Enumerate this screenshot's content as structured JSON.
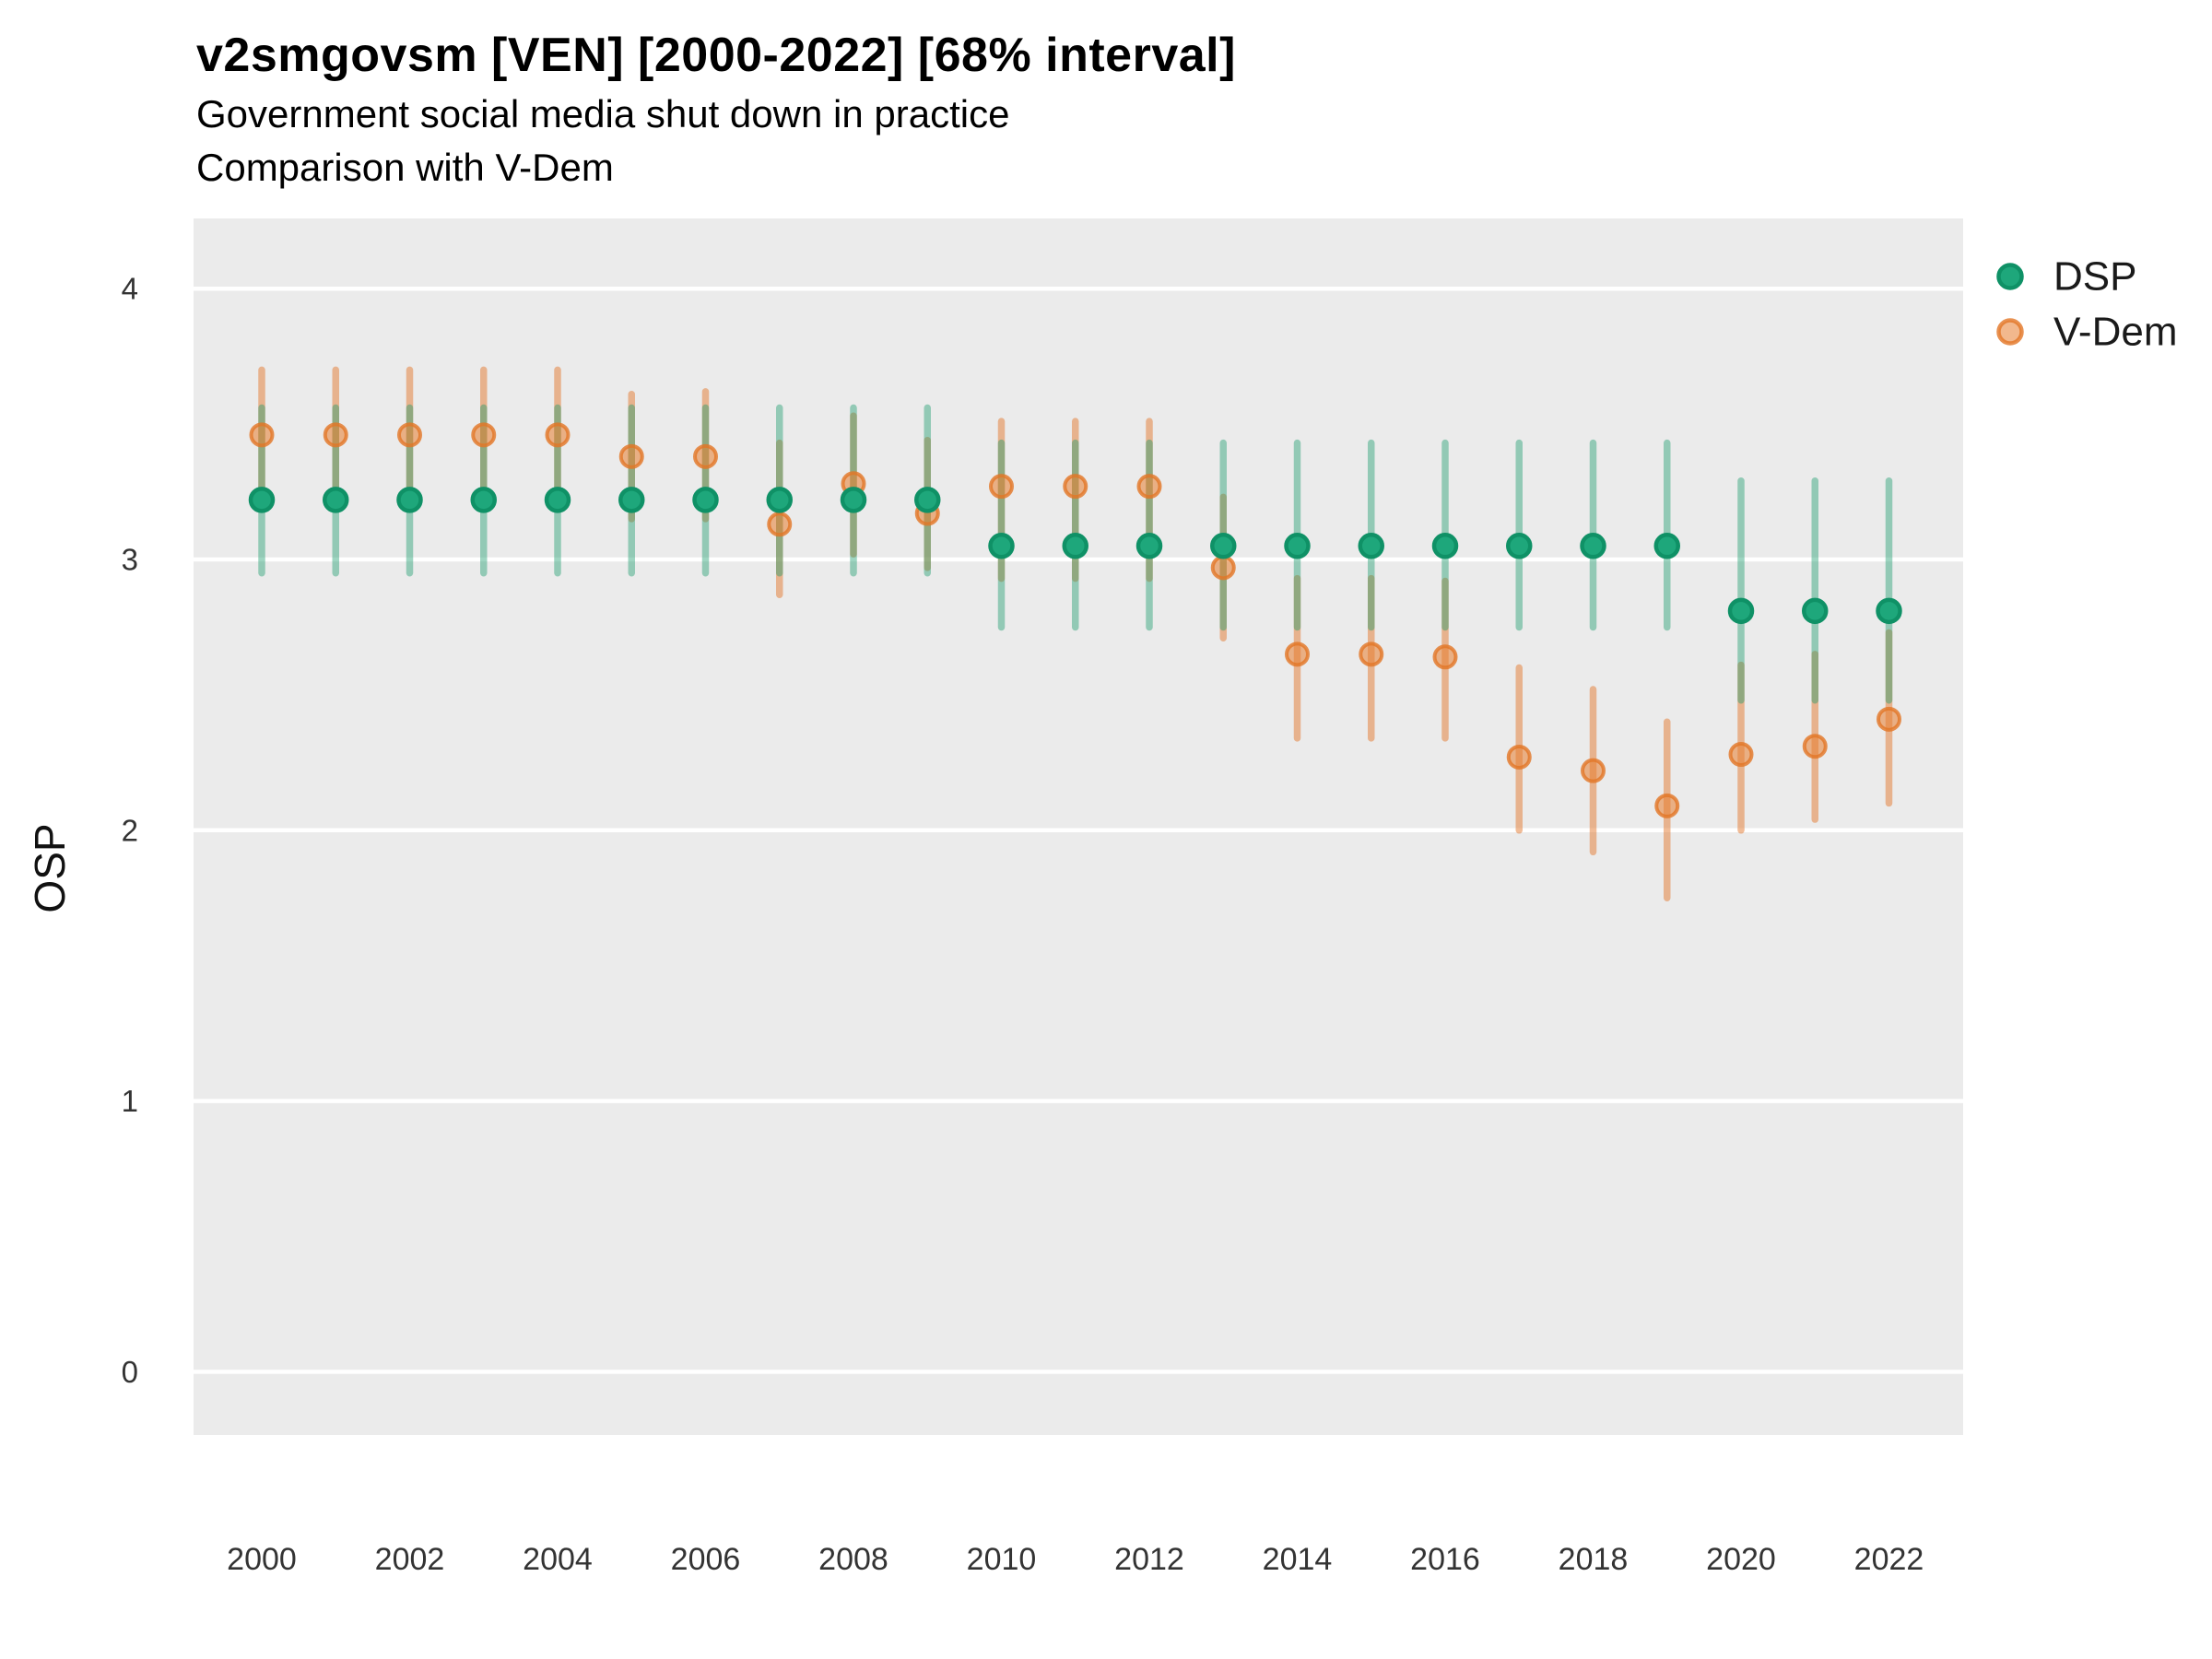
{
  "header": {
    "title": "v2smgovsm [VEN] [2000-2022] [68% interval]",
    "subtitle": "Government social media shut down in practice",
    "subtitle2": "Comparison with V-Dem"
  },
  "chart_data": {
    "type": "pointrange (dot with 68% credible interval bars)",
    "title": "v2smgovsm [VEN] [2000-2022] [68% interval]",
    "subtitle": "Government social media shut down in practice",
    "comparison_note": "Comparison with V-Dem",
    "xlabel": "",
    "ylabel": "OSP",
    "x": [
      2000,
      2001,
      2002,
      2003,
      2004,
      2005,
      2006,
      2007,
      2008,
      2009,
      2010,
      2011,
      2012,
      2013,
      2014,
      2015,
      2016,
      2017,
      2018,
      2019,
      2020,
      2021,
      2022
    ],
    "x_tick_labels": [
      "2000",
      "2002",
      "2004",
      "2006",
      "2008",
      "2010",
      "2012",
      "2014",
      "2016",
      "2018",
      "2020",
      "2022"
    ],
    "x_tick_years": [
      2000,
      2002,
      2004,
      2006,
      2008,
      2010,
      2012,
      2014,
      2016,
      2018,
      2020,
      2022
    ],
    "y_ticks": [
      0,
      1,
      2,
      3,
      4
    ],
    "ylim": [
      -0.27,
      4.27
    ],
    "grid": "major horizontal white lines on gray panel",
    "legend_position": "right",
    "series": [
      {
        "name": "V-Dem",
        "est": [
          3.46,
          3.46,
          3.46,
          3.46,
          3.46,
          3.38,
          3.38,
          3.13,
          3.28,
          3.17,
          3.27,
          3.27,
          3.27,
          2.97,
          2.65,
          2.65,
          2.64,
          2.27,
          2.22,
          2.09,
          2.28,
          2.31,
          2.41
        ],
        "lo": [
          3.22,
          3.22,
          3.22,
          3.22,
          3.22,
          3.15,
          3.15,
          2.87,
          3.02,
          2.97,
          2.93,
          2.93,
          2.93,
          2.71,
          2.34,
          2.34,
          2.34,
          2.0,
          1.92,
          1.75,
          2.0,
          2.04,
          2.1
        ],
        "hi": [
          3.7,
          3.7,
          3.7,
          3.7,
          3.7,
          3.61,
          3.62,
          3.43,
          3.53,
          3.44,
          3.51,
          3.51,
          3.51,
          3.23,
          2.93,
          2.93,
          2.92,
          2.6,
          2.52,
          2.4,
          2.61,
          2.65,
          2.73
        ],
        "point_fill": "rgba(231,126,48,0.55)",
        "point_stroke": "rgba(226,117,38,0.8)",
        "line_color": "rgba(227,121,47,0.5)"
      },
      {
        "name": "DSP",
        "est": [
          3.22,
          3.22,
          3.22,
          3.22,
          3.22,
          3.22,
          3.22,
          3.22,
          3.22,
          3.22,
          3.05,
          3.05,
          3.05,
          3.05,
          3.05,
          3.05,
          3.05,
          3.05,
          3.05,
          3.05,
          2.81,
          2.81,
          2.81
        ],
        "lo": [
          2.95,
          2.95,
          2.95,
          2.95,
          2.95,
          2.95,
          2.95,
          2.95,
          2.95,
          2.95,
          2.75,
          2.75,
          2.75,
          2.75,
          2.75,
          2.75,
          2.75,
          2.75,
          2.75,
          2.75,
          2.48,
          2.48,
          2.48
        ],
        "hi": [
          3.56,
          3.56,
          3.56,
          3.56,
          3.56,
          3.56,
          3.56,
          3.56,
          3.56,
          3.56,
          3.43,
          3.43,
          3.43,
          3.43,
          3.43,
          3.43,
          3.43,
          3.43,
          3.43,
          3.43,
          3.29,
          3.29,
          3.29
        ],
        "point_fill": "#1EA77B",
        "point_stroke": "#0F9166",
        "line_color": "rgba(23,154,108,0.42)"
      }
    ],
    "legend": [
      {
        "label": "DSP",
        "series": "DSP"
      },
      {
        "label": "V-Dem",
        "series": "V-Dem"
      }
    ],
    "colors": {
      "background": "#FFFFFF",
      "panel": "#EBEBEB",
      "gridline": "#FFFFFF",
      "tick_text": "#333333",
      "title_text": "#000000"
    }
  }
}
